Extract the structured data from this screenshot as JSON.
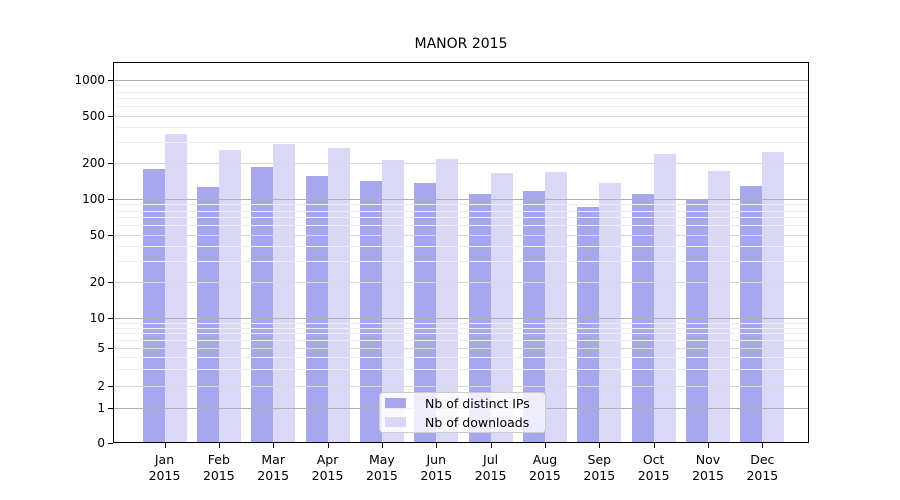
{
  "chart_data": {
    "type": "bar",
    "title": "MANOR 2015",
    "categories": [
      "Jan",
      "Feb",
      "Mar",
      "Apr",
      "May",
      "Jun",
      "Jul",
      "Aug",
      "Sep",
      "Oct",
      "Nov",
      "Dec"
    ],
    "category_year": "2015",
    "series": [
      {
        "name": "Nb of distinct IPs",
        "color": "#a7a7ee",
        "values": [
          180,
          127,
          186,
          155,
          142,
          136,
          111,
          116,
          85,
          110,
          100,
          129
        ]
      },
      {
        "name": "Nb of downloads",
        "color": "#d9d9f7",
        "values": [
          354,
          260,
          292,
          267,
          213,
          217,
          166,
          167,
          136,
          237,
          172,
          248
        ]
      }
    ],
    "yscale": "symlog",
    "yticks": [
      0,
      1,
      2,
      5,
      10,
      20,
      50,
      100,
      200,
      500,
      1000
    ],
    "ytick_labels": [
      "0",
      "1",
      "2",
      "5",
      "10",
      "20",
      "50",
      "100",
      "200",
      "500",
      "1000"
    ],
    "ylim": [
      0,
      1400
    ],
    "xlabel": "",
    "ylabel": "",
    "grid": "on",
    "legend_position": "lower center"
  },
  "colors": {
    "spine": "#000000",
    "grid_major": "#b0b0b0",
    "grid_mid": "#d9d9d9",
    "grid_minor": "#eeeeee",
    "legend_border": "#cccccc",
    "text": "#000000"
  }
}
